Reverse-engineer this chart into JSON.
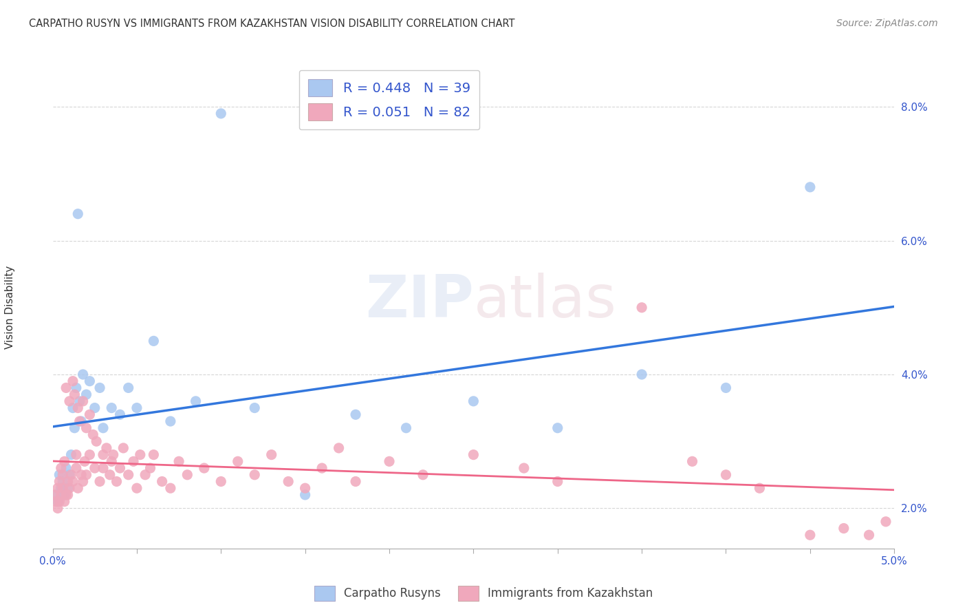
{
  "title": "CARPATHO RUSYN VS IMMIGRANTS FROM KAZAKHSTAN VISION DISABILITY CORRELATION CHART",
  "source": "Source: ZipAtlas.com",
  "ylabel": "Vision Disability",
  "legend_blue_label": "Carpatho Rusyns",
  "legend_pink_label": "Immigrants from Kazakhstan",
  "watermark": "ZIPatlas",
  "blue_color": "#aac8f0",
  "pink_color": "#f0a8bc",
  "blue_line_color": "#3377dd",
  "pink_line_color": "#ee6688",
  "legend_text_color": "#3355cc",
  "xlim": [
    0.0,
    5.0
  ],
  "ylim": [
    1.4,
    8.8
  ],
  "yticks": [
    2.0,
    4.0,
    6.0,
    8.0
  ],
  "xticks": [
    0.0,
    0.5,
    1.0,
    1.5,
    2.0,
    2.5,
    3.0,
    3.5,
    4.0,
    4.5,
    5.0
  ],
  "blue_x": [
    0.02,
    0.03,
    0.04,
    0.05,
    0.06,
    0.07,
    0.08,
    0.09,
    0.1,
    0.11,
    0.12,
    0.13,
    0.14,
    0.15,
    0.16,
    0.17,
    0.18,
    0.2,
    0.22,
    0.25,
    0.28,
    0.3,
    0.35,
    0.4,
    0.45,
    0.5,
    0.6,
    0.7,
    0.85,
    1.0,
    1.2,
    1.5,
    1.8,
    2.1,
    2.5,
    3.0,
    3.5,
    4.0,
    4.5
  ],
  "blue_y": [
    2.2,
    2.1,
    2.5,
    2.3,
    2.4,
    2.2,
    2.6,
    2.3,
    2.5,
    2.8,
    3.5,
    3.2,
    3.8,
    6.4,
    3.6,
    3.3,
    4.0,
    3.7,
    3.9,
    3.5,
    3.8,
    3.2,
    3.5,
    3.4,
    3.8,
    3.5,
    4.5,
    3.3,
    3.6,
    7.9,
    3.5,
    2.2,
    3.4,
    3.2,
    3.6,
    3.2,
    4.0,
    3.8,
    6.8
  ],
  "pink_x": [
    0.01,
    0.02,
    0.03,
    0.03,
    0.04,
    0.04,
    0.05,
    0.05,
    0.06,
    0.06,
    0.07,
    0.07,
    0.08,
    0.08,
    0.09,
    0.09,
    0.1,
    0.1,
    0.11,
    0.12,
    0.12,
    0.13,
    0.14,
    0.14,
    0.15,
    0.15,
    0.16,
    0.17,
    0.18,
    0.18,
    0.19,
    0.2,
    0.2,
    0.22,
    0.22,
    0.24,
    0.25,
    0.26,
    0.28,
    0.3,
    0.3,
    0.32,
    0.34,
    0.35,
    0.36,
    0.38,
    0.4,
    0.42,
    0.45,
    0.48,
    0.5,
    0.52,
    0.55,
    0.58,
    0.6,
    0.65,
    0.7,
    0.75,
    0.8,
    0.9,
    1.0,
    1.1,
    1.2,
    1.3,
    1.4,
    1.5,
    1.6,
    1.7,
    1.8,
    2.0,
    2.2,
    2.5,
    2.8,
    3.0,
    3.5,
    3.8,
    4.0,
    4.2,
    4.5,
    4.7,
    4.85,
    4.95
  ],
  "pink_y": [
    2.2,
    2.1,
    2.3,
    2.0,
    2.4,
    2.1,
    2.2,
    2.6,
    2.3,
    2.5,
    2.1,
    2.7,
    2.2,
    3.8,
    2.4,
    2.2,
    3.6,
    2.3,
    2.5,
    3.9,
    2.4,
    3.7,
    2.6,
    2.8,
    3.5,
    2.3,
    3.3,
    2.5,
    3.6,
    2.4,
    2.7,
    3.2,
    2.5,
    3.4,
    2.8,
    3.1,
    2.6,
    3.0,
    2.4,
    2.8,
    2.6,
    2.9,
    2.5,
    2.7,
    2.8,
    2.4,
    2.6,
    2.9,
    2.5,
    2.7,
    2.3,
    2.8,
    2.5,
    2.6,
    2.8,
    2.4,
    2.3,
    2.7,
    2.5,
    2.6,
    2.4,
    2.7,
    2.5,
    2.8,
    2.4,
    2.3,
    2.6,
    2.9,
    2.4,
    2.7,
    2.5,
    2.8,
    2.6,
    2.4,
    5.0,
    2.7,
    2.5,
    2.3,
    1.6,
    1.7,
    1.6,
    1.8
  ]
}
